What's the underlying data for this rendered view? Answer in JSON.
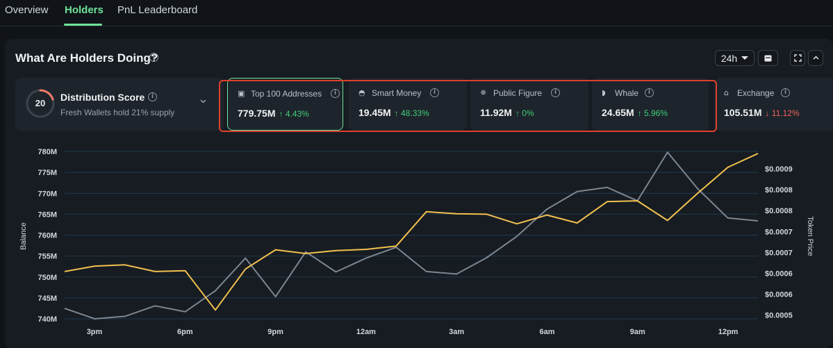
{
  "tabs": [
    {
      "label": "Overview",
      "active": false
    },
    {
      "label": "Holders",
      "active": true
    },
    {
      "label": "PnL Leaderboard",
      "active": false
    }
  ],
  "panel": {
    "title": "What Are Holders Doing?",
    "range": "24h"
  },
  "distribution": {
    "score": "20",
    "title": "Distribution Score",
    "subtitle": "Fresh Wallets hold 21% supply"
  },
  "metrics": [
    {
      "icon": "wallet-icon",
      "label": "Top 100 Addresses",
      "value": "779.75M",
      "change": "↑ 4.43%",
      "direction": "up"
    },
    {
      "icon": "smart-money-icon",
      "label": "Smart Money",
      "value": "19.45M",
      "change": "↑ 48.33%",
      "direction": "up"
    },
    {
      "icon": "public-figure-icon",
      "label": "Public Figure",
      "value": "11.92M",
      "change": "↑ 0%",
      "direction": "up"
    },
    {
      "icon": "whale-icon",
      "label": "Whale",
      "value": "24.65M",
      "change": "↑ 5.96%",
      "direction": "up"
    },
    {
      "icon": "exchange-icon",
      "label": "Exchange",
      "value": "105.51M",
      "change": "↓ 11.12%",
      "direction": "down"
    }
  ],
  "colors": {
    "accent": "#6fe39a",
    "balance_line": "#f2c14e",
    "price_line": "#7d8690",
    "highlight": "#e0402f"
  },
  "chart_data": {
    "type": "line",
    "ylabel": "Balance",
    "y2label": "Token Price",
    "yticks": [
      "780M",
      "775M",
      "770M",
      "765M",
      "760M",
      "755M",
      "750M",
      "745M",
      "740M"
    ],
    "yrange": [
      740,
      780
    ],
    "y2ticks": [
      "$0.0009",
      "$0.0008",
      "$0.0008",
      "$0.0007",
      "$0.0007",
      "$0.0006",
      "$0.0006",
      "$0.0005"
    ],
    "xticks": [
      "3pm",
      "6pm",
      "9pm",
      "12am",
      "3am",
      "6am",
      "9am",
      "12pm"
    ],
    "series": [
      {
        "color": "#f2c14e",
        "values": [
          751.3,
          752.6,
          752.9,
          751.3,
          751.5,
          742.1,
          751.9,
          756.5,
          755.6,
          756.3,
          756.6,
          757.4,
          765.6,
          765.1,
          765.0,
          762.7,
          764.8,
          762.9,
          768.0,
          768.2,
          763.5,
          770.0,
          776.2,
          779.5
        ]
      },
      {
        "color": "#7d8690",
        "values": [
          742.5,
          740.0,
          740.6,
          743.1,
          741.7,
          746.7,
          754.5,
          745.3,
          756.0,
          751.2,
          754.5,
          757.1,
          751.3,
          750.7,
          754.6,
          759.7,
          766.2,
          770.4,
          771.4,
          768.2,
          779.8,
          771.1,
          764.1,
          763.4
        ]
      }
    ]
  }
}
